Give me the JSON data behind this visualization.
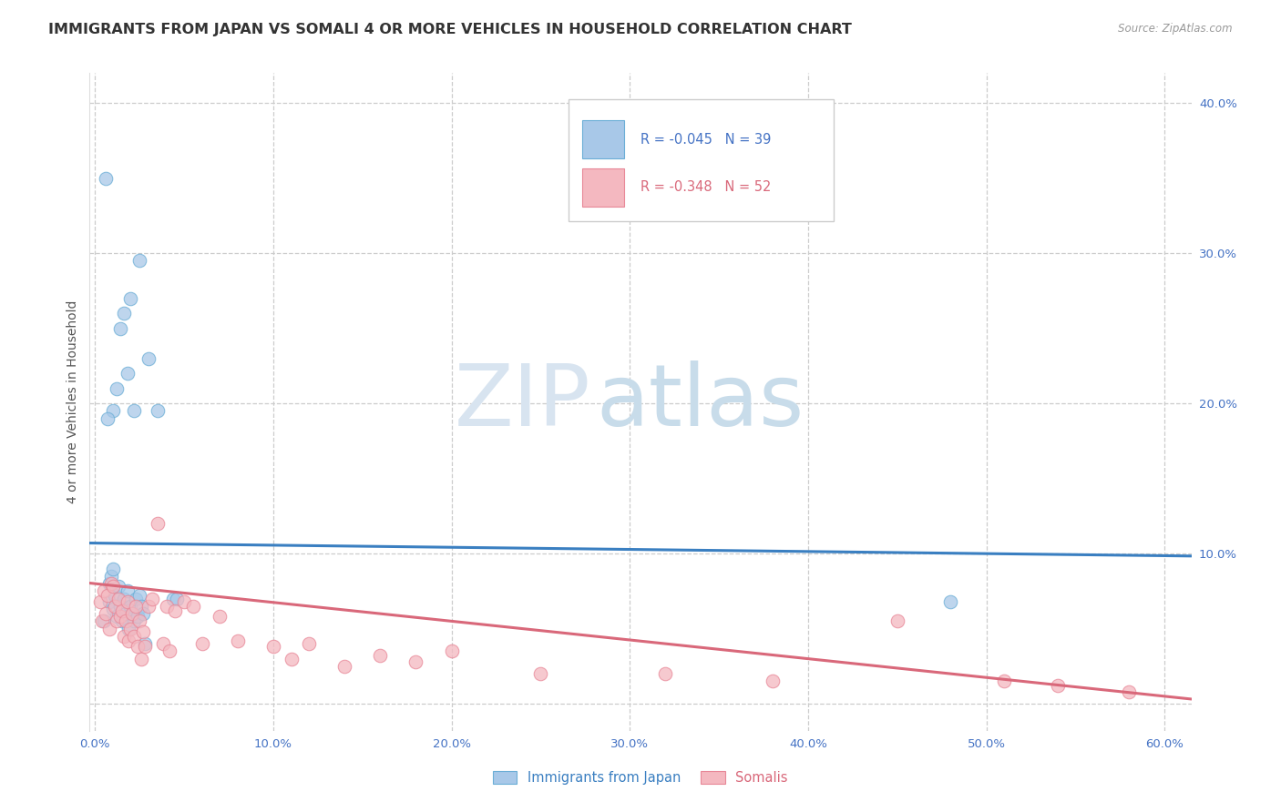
{
  "title": "IMMIGRANTS FROM JAPAN VS SOMALI 4 OR MORE VEHICLES IN HOUSEHOLD CORRELATION CHART",
  "source": "Source: ZipAtlas.com",
  "ylabel": "4 or more Vehicles in Household",
  "xlim": [
    -0.003,
    0.615
  ],
  "ylim": [
    -0.018,
    0.42
  ],
  "xtick_vals": [
    0.0,
    0.1,
    0.2,
    0.3,
    0.4,
    0.5,
    0.6
  ],
  "xticklabels": [
    "0.0%",
    "10.0%",
    "20.0%",
    "30.0%",
    "40.0%",
    "50.0%",
    "60.0%"
  ],
  "yticks_right": [
    0.1,
    0.2,
    0.3,
    0.4
  ],
  "yticklabels_right": [
    "10.0%",
    "20.0%",
    "30.0%",
    "40.0%"
  ],
  "grid_yticks": [
    0.0,
    0.1,
    0.2,
    0.3,
    0.4
  ],
  "japan_color": "#a8c8e8",
  "japan_edge_color": "#6baed6",
  "somali_color": "#f4b8c0",
  "somali_edge_color": "#e88898",
  "japan_R": -0.045,
  "japan_N": 39,
  "somali_R": -0.348,
  "somali_N": 52,
  "japan_line_color": "#3a7fc1",
  "somali_line_color": "#d9687a",
  "watermark_zip": "ZIP",
  "watermark_atlas": "atlas",
  "legend_label_japan": "Immigrants from Japan",
  "legend_label_somali": "Somalis",
  "background_color": "#ffffff",
  "title_fontsize": 11.5,
  "axis_label_fontsize": 10,
  "tick_fontsize": 9.5,
  "japan_line_intercept": 0.107,
  "japan_line_slope": -0.014,
  "somali_line_intercept": 0.08,
  "somali_line_slope": -0.125,
  "japan_scatter_x": [
    0.008,
    0.01,
    0.011,
    0.012,
    0.013,
    0.014,
    0.015,
    0.016,
    0.017,
    0.018,
    0.019,
    0.02,
    0.021,
    0.022,
    0.023,
    0.024,
    0.025,
    0.026,
    0.027,
    0.028,
    0.01,
    0.012,
    0.014,
    0.016,
    0.018,
    0.02,
    0.022,
    0.025,
    0.03,
    0.035,
    0.006,
    0.007,
    0.008,
    0.009,
    0.01,
    0.044,
    0.046,
    0.48,
    0.005
  ],
  "japan_scatter_y": [
    0.068,
    0.063,
    0.072,
    0.058,
    0.078,
    0.065,
    0.055,
    0.07,
    0.06,
    0.075,
    0.05,
    0.065,
    0.06,
    0.055,
    0.07,
    0.058,
    0.072,
    0.065,
    0.06,
    0.04,
    0.195,
    0.21,
    0.25,
    0.26,
    0.22,
    0.27,
    0.195,
    0.295,
    0.23,
    0.195,
    0.35,
    0.19,
    0.08,
    0.085,
    0.09,
    0.07,
    0.07,
    0.068,
    0.055
  ],
  "somali_scatter_x": [
    0.003,
    0.004,
    0.005,
    0.006,
    0.007,
    0.008,
    0.009,
    0.01,
    0.011,
    0.012,
    0.013,
    0.014,
    0.015,
    0.016,
    0.017,
    0.018,
    0.019,
    0.02,
    0.021,
    0.022,
    0.023,
    0.024,
    0.025,
    0.026,
    0.027,
    0.028,
    0.03,
    0.032,
    0.035,
    0.038,
    0.04,
    0.042,
    0.045,
    0.05,
    0.055,
    0.06,
    0.07,
    0.08,
    0.1,
    0.11,
    0.12,
    0.14,
    0.16,
    0.18,
    0.2,
    0.25,
    0.32,
    0.38,
    0.45,
    0.51,
    0.54,
    0.58
  ],
  "somali_scatter_y": [
    0.068,
    0.055,
    0.075,
    0.06,
    0.072,
    0.05,
    0.08,
    0.078,
    0.065,
    0.055,
    0.07,
    0.058,
    0.062,
    0.045,
    0.055,
    0.068,
    0.042,
    0.05,
    0.06,
    0.045,
    0.065,
    0.038,
    0.055,
    0.03,
    0.048,
    0.038,
    0.065,
    0.07,
    0.12,
    0.04,
    0.065,
    0.035,
    0.062,
    0.068,
    0.065,
    0.04,
    0.058,
    0.042,
    0.038,
    0.03,
    0.04,
    0.025,
    0.032,
    0.028,
    0.035,
    0.02,
    0.02,
    0.015,
    0.055,
    0.015,
    0.012,
    0.008
  ]
}
